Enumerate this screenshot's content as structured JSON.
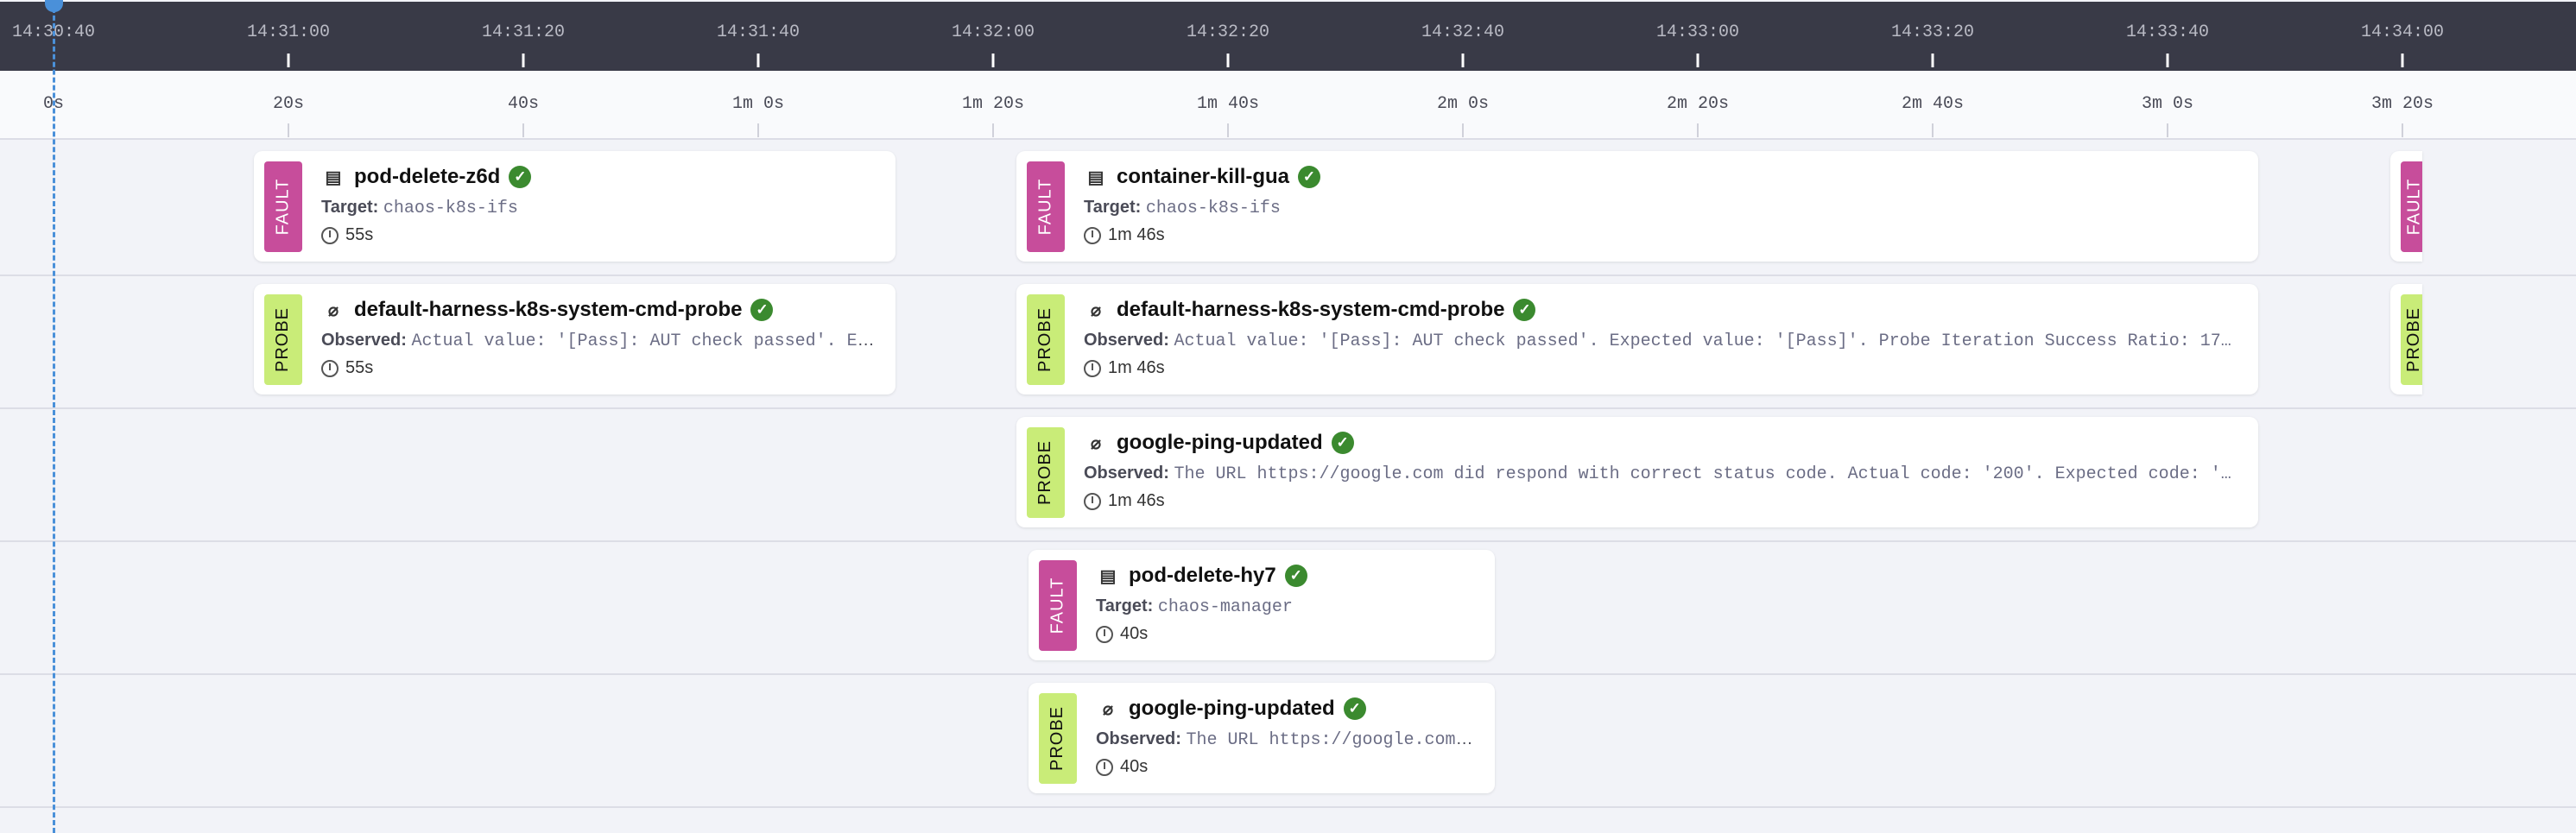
{
  "header_ticks": [
    "14:30:40",
    "14:31:00",
    "14:31:20",
    "14:31:40",
    "14:32:00",
    "14:32:20",
    "14:32:40",
    "14:33:00",
    "14:33:20",
    "14:33:40",
    "14:34:00"
  ],
  "ruler_ticks": [
    "0s",
    "20s",
    "40s",
    "1m 0s",
    "1m 20s",
    "1m 40s",
    "2m 0s",
    "2m 20s",
    "2m 40s",
    "3m 0s",
    "3m 20s"
  ],
  "labels": {
    "fault": "FAULT",
    "probe": "PROBE",
    "target": "Target:",
    "observed": "Observed:"
  },
  "colors": {
    "fault": "#c74d9b",
    "probe": "#c9ec78",
    "success": "#3b8a2f",
    "now_marker": "#4a90d9",
    "header_bg": "#393a47"
  },
  "cards": [
    {
      "type": "fault",
      "icon": "chaos-fault-icon",
      "title": "pod-delete-z6d",
      "status": "success",
      "target": "chaos-k8s-ifs",
      "duration": "55s"
    },
    {
      "type": "fault",
      "icon": "chaos-fault-icon",
      "title": "container-kill-gua",
      "status": "success",
      "target": "chaos-k8s-ifs",
      "duration": "1m 46s"
    },
    {
      "type": "probe",
      "icon": "probe-tube-icon",
      "title": "default-harness-k8s-system-cmd-probe",
      "status": "success",
      "observed": "Actual value: '[Pass]: AUT check passed'. Expected value: '[Pass]'. Probe Iteration Success Ratio: 17…",
      "duration": "55s"
    },
    {
      "type": "probe",
      "icon": "probe-tube-icon",
      "title": "default-harness-k8s-system-cmd-probe",
      "status": "success",
      "observed": "Actual value: '[Pass]: AUT check passed'. Expected value: '[Pass]'. Probe Iteration Success Ratio: 17…",
      "duration": "1m 46s"
    },
    {
      "type": "probe",
      "icon": "probe-tube-icon",
      "title": "google-ping-updated",
      "status": "success",
      "observed": "The URL https://google.com did respond with correct status code. Actual code: '200'. Expected code: '…",
      "duration": "1m 46s"
    },
    {
      "type": "fault",
      "icon": "chaos-fault-icon",
      "title": "pod-delete-hy7",
      "status": "success",
      "target": "chaos-manager",
      "duration": "40s"
    },
    {
      "type": "probe",
      "icon": "probe-tube-icon",
      "title": "google-ping-updated",
      "status": "success",
      "observed": "The URL https://google.com did respond with correct status code.",
      "duration": "40s"
    }
  ]
}
